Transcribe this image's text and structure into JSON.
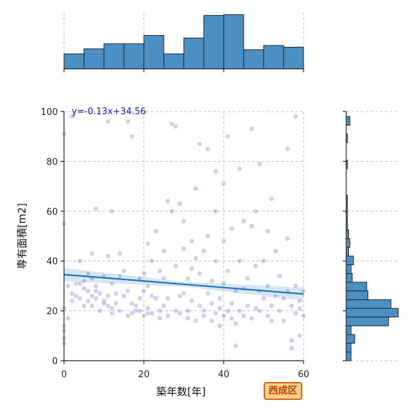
{
  "badge": "西成区",
  "chart_data": {
    "type": "scatter",
    "xlabel": "築年数[年]",
    "ylabel": "専有面積[m2]",
    "xlim": [
      0,
      60
    ],
    "ylim": [
      0,
      100
    ],
    "xticks": [
      0,
      20,
      40,
      60
    ],
    "yticks": [
      0,
      20,
      40,
      60,
      80,
      100
    ],
    "grid": true,
    "regression": {
      "label": "y=-0.13x+34.56",
      "slope": -0.13,
      "intercept": 34.56
    },
    "point_color": "#2b2bb3",
    "line_color": "#1f77b4",
    "hist_color": "#4a90c4",
    "top_histogram": {
      "bin_edges": [
        0,
        5,
        10,
        15,
        20,
        25,
        30,
        35,
        40,
        45,
        50,
        55,
        60
      ],
      "counts": [
        18,
        24,
        30,
        30,
        40,
        18,
        37,
        64,
        65,
        23,
        28,
        26
      ]
    },
    "right_histogram": {
      "bin_edges": [
        0,
        3.5,
        7,
        10.5,
        14,
        17.5,
        21,
        24.5,
        28,
        31.5,
        35,
        38.5,
        42,
        45.5,
        49,
        52.5,
        56,
        59.5,
        63,
        66.5,
        70,
        73.5,
        77,
        80.5,
        84,
        87.5,
        91,
        94.5,
        98
      ],
      "counts": [
        4,
        4,
        7,
        4,
        35,
        43,
        37,
        18,
        17,
        5,
        4,
        6,
        2,
        3,
        2,
        1,
        1,
        1,
        1,
        0,
        0,
        0,
        1,
        0,
        0,
        1,
        0,
        3
      ]
    },
    "points": [
      [
        0,
        7
      ],
      [
        0,
        9
      ],
      [
        0,
        12
      ],
      [
        0,
        14
      ],
      [
        1,
        17
      ],
      [
        0,
        21
      ],
      [
        1,
        30
      ],
      [
        0,
        55
      ],
      [
        0,
        91
      ],
      [
        2,
        98
      ],
      [
        2,
        24
      ],
      [
        2,
        27
      ],
      [
        3,
        31
      ],
      [
        3,
        26
      ],
      [
        4,
        25
      ],
      [
        4,
        31
      ],
      [
        4,
        40
      ],
      [
        5,
        22
      ],
      [
        5,
        29
      ],
      [
        5,
        32
      ],
      [
        6,
        24
      ],
      [
        6,
        35
      ],
      [
        6,
        28
      ],
      [
        7,
        26
      ],
      [
        7,
        22
      ],
      [
        7,
        33
      ],
      [
        7,
        43
      ],
      [
        8,
        28
      ],
      [
        8,
        30
      ],
      [
        8,
        25
      ],
      [
        8,
        61
      ],
      [
        9,
        27
      ],
      [
        9,
        20
      ],
      [
        10,
        34
      ],
      [
        10,
        24
      ],
      [
        10,
        23
      ],
      [
        11,
        22
      ],
      [
        11,
        26
      ],
      [
        11,
        42
      ],
      [
        11,
        96
      ],
      [
        12,
        21
      ],
      [
        12,
        31
      ],
      [
        12,
        19
      ],
      [
        12,
        60
      ],
      [
        13,
        27
      ],
      [
        13,
        23
      ],
      [
        14,
        34
      ],
      [
        14,
        43
      ],
      [
        14,
        20
      ],
      [
        15,
        26
      ],
      [
        15,
        36
      ],
      [
        16,
        18
      ],
      [
        16,
        28
      ],
      [
        16,
        96
      ],
      [
        17,
        23
      ],
      [
        17,
        90
      ],
      [
        17,
        19
      ],
      [
        18,
        22
      ],
      [
        18,
        20
      ],
      [
        19,
        20
      ],
      [
        19,
        33
      ],
      [
        19,
        25
      ],
      [
        20,
        18
      ],
      [
        20,
        28
      ],
      [
        20,
        35
      ],
      [
        21,
        21
      ],
      [
        21,
        30
      ],
      [
        21,
        19
      ],
      [
        21,
        47
      ],
      [
        22,
        26
      ],
      [
        22,
        19
      ],
      [
        22,
        40
      ],
      [
        23,
        52
      ],
      [
        23,
        25
      ],
      [
        24,
        20
      ],
      [
        24,
        36
      ],
      [
        24,
        17
      ],
      [
        25,
        22
      ],
      [
        25,
        44
      ],
      [
        25,
        33
      ],
      [
        26,
        64
      ],
      [
        26,
        18
      ],
      [
        26,
        25
      ],
      [
        27,
        60
      ],
      [
        27,
        95
      ],
      [
        28,
        20
      ],
      [
        28,
        38
      ],
      [
        28,
        94
      ],
      [
        29,
        63
      ],
      [
        29,
        26
      ],
      [
        29,
        19
      ],
      [
        30,
        56
      ],
      [
        30,
        27
      ],
      [
        30,
        45
      ],
      [
        31,
        20
      ],
      [
        31,
        33
      ],
      [
        31,
        17
      ],
      [
        32,
        37
      ],
      [
        32,
        24
      ],
      [
        32,
        48
      ],
      [
        33,
        69
      ],
      [
        33,
        16
      ],
      [
        33,
        41
      ],
      [
        34,
        22
      ],
      [
        34,
        87
      ],
      [
        34,
        35
      ],
      [
        35,
        18
      ],
      [
        35,
        44
      ],
      [
        35,
        20
      ],
      [
        36,
        50
      ],
      [
        36,
        27
      ],
      [
        36,
        85
      ],
      [
        37,
        16
      ],
      [
        37,
        32
      ],
      [
        37,
        23
      ],
      [
        38,
        60
      ],
      [
        38,
        19
      ],
      [
        38,
        40
      ],
      [
        38,
        76
      ],
      [
        39,
        14
      ],
      [
        39,
        25
      ],
      [
        39,
        21
      ],
      [
        40,
        71
      ],
      [
        40,
        31
      ],
      [
        40,
        18
      ],
      [
        40,
        48
      ],
      [
        41,
        20
      ],
      [
        41,
        36
      ],
      [
        41,
        90
      ],
      [
        42,
        17
      ],
      [
        42,
        53
      ],
      [
        42,
        23
      ],
      [
        43,
        15
      ],
      [
        43,
        28
      ],
      [
        43,
        6
      ],
      [
        44,
        77
      ],
      [
        44,
        20
      ],
      [
        44,
        40
      ],
      [
        45,
        18
      ],
      [
        45,
        56
      ],
      [
        45,
        29
      ],
      [
        46,
        33
      ],
      [
        46,
        22
      ],
      [
        47,
        93
      ],
      [
        47,
        54
      ],
      [
        47,
        17
      ],
      [
        48,
        21
      ],
      [
        48,
        38
      ],
      [
        48,
        60
      ],
      [
        49,
        20
      ],
      [
        49,
        79
      ],
      [
        49,
        28
      ],
      [
        50,
        25
      ],
      [
        50,
        40
      ],
      [
        51,
        18
      ],
      [
        51,
        52
      ],
      [
        51,
        30
      ],
      [
        52,
        65
      ],
      [
        52,
        22
      ],
      [
        52,
        16
      ],
      [
        53,
        44
      ],
      [
        53,
        26
      ],
      [
        54,
        20
      ],
      [
        54,
        34
      ],
      [
        55,
        25
      ],
      [
        55,
        16
      ],
      [
        56,
        49
      ],
      [
        56,
        85
      ],
      [
        56,
        28
      ],
      [
        57,
        22
      ],
      [
        57,
        8
      ],
      [
        57,
        5
      ],
      [
        58,
        19
      ],
      [
        58,
        30
      ],
      [
        58,
        98
      ],
      [
        59,
        24
      ],
      [
        59,
        10
      ],
      [
        59,
        21
      ],
      [
        60,
        18
      ],
      [
        60,
        28
      ]
    ]
  }
}
